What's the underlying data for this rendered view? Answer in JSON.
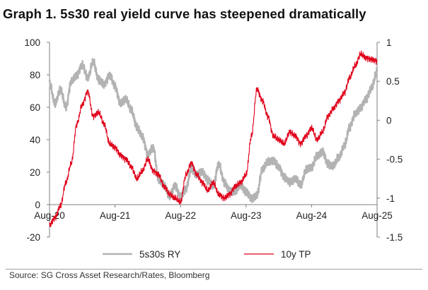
{
  "title": "Graph 1. 5s30 real yield curve has steepened dramatically",
  "source": "Source: SG Cross Asset Research/Rates, Bloomberg",
  "chart_data": {
    "type": "line",
    "x_tick_labels": [
      "Aug-20",
      "Aug-21",
      "Aug-22",
      "Aug-23",
      "Aug-24",
      "Aug-25"
    ],
    "xlim": [
      "2020-08",
      "2025-08"
    ],
    "left_axis": {
      "ticks": [
        "100",
        "80",
        "60",
        "40",
        "20",
        "0",
        "-20"
      ],
      "ylim": [
        -20,
        100
      ]
    },
    "right_axis": {
      "ticks": [
        "1",
        "0.5",
        "0",
        "-0.5",
        "-1",
        "-1.5"
      ],
      "ylim": [
        -1.5,
        1
      ]
    },
    "grid": false,
    "legend": "bottom",
    "series": [
      {
        "name": "5s30s RY",
        "axis": "left",
        "color": "#b3b3b3",
        "points": [
          [
            "2020-08-01",
            75
          ],
          [
            "2020-09-01",
            62
          ],
          [
            "2020-10-01",
            71
          ],
          [
            "2020-11-01",
            60
          ],
          [
            "2020-12-01",
            76
          ],
          [
            "2021-01-01",
            80
          ],
          [
            "2021-02-01",
            86
          ],
          [
            "2021-03-01",
            78
          ],
          [
            "2021-04-01",
            88
          ],
          [
            "2021-05-01",
            77
          ],
          [
            "2021-06-01",
            74
          ],
          [
            "2021-07-01",
            80
          ],
          [
            "2021-08-01",
            73
          ],
          [
            "2021-09-01",
            62
          ],
          [
            "2021-10-01",
            65
          ],
          [
            "2021-11-01",
            58
          ],
          [
            "2021-12-01",
            48
          ],
          [
            "2022-01-01",
            42
          ],
          [
            "2022-02-01",
            31
          ],
          [
            "2022-03-01",
            35
          ],
          [
            "2022-04-01",
            15
          ],
          [
            "2022-05-01",
            12
          ],
          [
            "2022-06-01",
            5
          ],
          [
            "2022-07-01",
            12
          ],
          [
            "2022-08-01",
            5
          ],
          [
            "2022-09-01",
            10
          ],
          [
            "2022-10-01",
            22
          ],
          [
            "2022-11-01",
            18
          ],
          [
            "2022-12-01",
            20
          ],
          [
            "2023-01-01",
            15
          ],
          [
            "2023-02-01",
            12
          ],
          [
            "2023-03-01",
            25
          ],
          [
            "2023-04-01",
            14
          ],
          [
            "2023-05-01",
            8
          ],
          [
            "2023-06-01",
            8
          ],
          [
            "2023-07-01",
            12
          ],
          [
            "2023-08-01",
            8
          ],
          [
            "2023-09-01",
            4
          ],
          [
            "2023-10-01",
            6
          ],
          [
            "2023-11-01",
            22
          ],
          [
            "2023-12-01",
            26
          ],
          [
            "2024-01-01",
            27
          ],
          [
            "2024-02-01",
            23
          ],
          [
            "2024-03-01",
            17
          ],
          [
            "2024-04-01",
            14
          ],
          [
            "2024-05-01",
            16
          ],
          [
            "2024-06-01",
            12
          ],
          [
            "2024-07-01",
            21
          ],
          [
            "2024-08-01",
            23
          ],
          [
            "2024-09-01",
            30
          ],
          [
            "2024-10-01",
            33
          ],
          [
            "2024-11-01",
            25
          ],
          [
            "2024-12-01",
            24
          ],
          [
            "2025-01-01",
            29
          ],
          [
            "2025-02-01",
            36
          ],
          [
            "2025-03-01",
            48
          ],
          [
            "2025-04-01",
            56
          ],
          [
            "2025-05-01",
            60
          ],
          [
            "2025-06-01",
            65
          ],
          [
            "2025-07-01",
            72
          ],
          [
            "2025-08-01",
            82
          ]
        ]
      },
      {
        "name": "10y TP",
        "axis": "right",
        "color": "#e0001b",
        "points": [
          [
            "2020-08-01",
            -1.35
          ],
          [
            "2020-09-01",
            -1.25
          ],
          [
            "2020-10-01",
            -1.1
          ],
          [
            "2020-11-01",
            -0.8
          ],
          [
            "2020-12-01",
            -0.55
          ],
          [
            "2021-01-01",
            -0.05
          ],
          [
            "2021-02-01",
            0.2
          ],
          [
            "2021-03-01",
            0.37
          ],
          [
            "2021-04-01",
            0.05
          ],
          [
            "2021-05-01",
            0.1
          ],
          [
            "2021-06-01",
            -0.05
          ],
          [
            "2021-07-01",
            -0.3
          ],
          [
            "2021-08-01",
            -0.35
          ],
          [
            "2021-09-01",
            -0.45
          ],
          [
            "2021-10-01",
            -0.5
          ],
          [
            "2021-11-01",
            -0.6
          ],
          [
            "2021-12-01",
            -0.75
          ],
          [
            "2022-01-01",
            -0.65
          ],
          [
            "2022-02-01",
            -0.5
          ],
          [
            "2022-03-01",
            -0.65
          ],
          [
            "2022-04-01",
            -0.7
          ],
          [
            "2022-05-01",
            -0.85
          ],
          [
            "2022-06-01",
            -0.95
          ],
          [
            "2022-07-01",
            -1.0
          ],
          [
            "2022-08-01",
            -1.05
          ],
          [
            "2022-09-01",
            -0.7
          ],
          [
            "2022-10-01",
            -0.55
          ],
          [
            "2022-11-01",
            -0.7
          ],
          [
            "2022-12-01",
            -0.8
          ],
          [
            "2023-01-01",
            -0.9
          ],
          [
            "2023-02-01",
            -0.8
          ],
          [
            "2023-03-01",
            -0.95
          ],
          [
            "2023-04-01",
            -1.0
          ],
          [
            "2023-05-01",
            -0.95
          ],
          [
            "2023-06-01",
            -0.85
          ],
          [
            "2023-07-01",
            -0.8
          ],
          [
            "2023-08-01",
            -0.7
          ],
          [
            "2023-09-01",
            -0.2
          ],
          [
            "2023-10-01",
            0.4
          ],
          [
            "2023-11-01",
            0.25
          ],
          [
            "2023-12-01",
            0.05
          ],
          [
            "2024-01-01",
            -0.2
          ],
          [
            "2024-02-01",
            -0.25
          ],
          [
            "2024-03-01",
            -0.3
          ],
          [
            "2024-04-01",
            -0.15
          ],
          [
            "2024-05-01",
            -0.2
          ],
          [
            "2024-06-01",
            -0.3
          ],
          [
            "2024-07-01",
            -0.2
          ],
          [
            "2024-08-01",
            -0.1
          ],
          [
            "2024-09-01",
            -0.25
          ],
          [
            "2024-10-01",
            -0.15
          ],
          [
            "2024-11-01",
            0.05
          ],
          [
            "2024-12-01",
            0.15
          ],
          [
            "2025-01-01",
            0.25
          ],
          [
            "2025-02-01",
            0.35
          ],
          [
            "2025-03-01",
            0.55
          ],
          [
            "2025-04-01",
            0.7
          ],
          [
            "2025-05-01",
            0.85
          ],
          [
            "2025-06-01",
            0.8
          ],
          [
            "2025-07-01",
            0.78
          ],
          [
            "2025-08-01",
            0.76
          ]
        ]
      }
    ]
  }
}
